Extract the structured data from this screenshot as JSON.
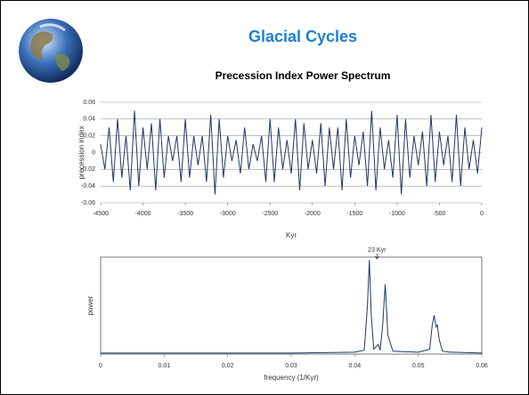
{
  "header": {
    "title": "Glacial Cycles",
    "subtitle": "Precession Index Power Spectrum"
  },
  "chart_data": [
    {
      "type": "line",
      "ylabel": "precession index",
      "xlabel": "Kyr",
      "color": "#1f3864",
      "grid": true,
      "xlim": [
        -4500,
        0
      ],
      "xticks": [
        -4500,
        -4000,
        -3500,
        -3000,
        -2500,
        -2000,
        -1500,
        -1000,
        -500,
        0
      ],
      "ylim": [
        -0.06,
        0.06
      ],
      "yticks": [
        0.06,
        0.04,
        0.02,
        0,
        -0.02,
        -0.04,
        -0.06
      ],
      "x": [
        -4500,
        -4450,
        -4400,
        -4350,
        -4300,
        -4250,
        -4200,
        -4150,
        -4100,
        -4050,
        -4000,
        -3950,
        -3900,
        -3850,
        -3800,
        -3750,
        -3700,
        -3650,
        -3600,
        -3550,
        -3500,
        -3450,
        -3400,
        -3350,
        -3300,
        -3250,
        -3200,
        -3150,
        -3100,
        -3050,
        -3000,
        -2950,
        -2900,
        -2850,
        -2800,
        -2750,
        -2700,
        -2650,
        -2600,
        -2550,
        -2500,
        -2450,
        -2400,
        -2350,
        -2300,
        -2250,
        -2200,
        -2150,
        -2100,
        -2050,
        -2000,
        -1950,
        -1900,
        -1850,
        -1800,
        -1750,
        -1700,
        -1650,
        -1600,
        -1550,
        -1500,
        -1450,
        -1400,
        -1350,
        -1300,
        -1250,
        -1200,
        -1150,
        -1100,
        -1050,
        -1000,
        -950,
        -900,
        -850,
        -800,
        -750,
        -700,
        -650,
        -600,
        -550,
        -500,
        -450,
        -400,
        -350,
        -300,
        -250,
        -200,
        -150,
        -100,
        -50,
        0
      ],
      "values": [
        0.01,
        -0.02,
        0.03,
        -0.035,
        0.04,
        -0.03,
        0.02,
        -0.045,
        0.05,
        -0.04,
        0.03,
        -0.02,
        0.035,
        -0.045,
        0.04,
        -0.03,
        0.02,
        -0.01,
        0.02,
        -0.035,
        0.04,
        -0.03,
        0.02,
        -0.015,
        0.02,
        -0.035,
        0.045,
        -0.05,
        0.04,
        -0.03,
        0.02,
        -0.01,
        0.015,
        -0.025,
        0.03,
        -0.02,
        0.01,
        -0.01,
        0.02,
        -0.035,
        0.04,
        -0.035,
        0.03,
        -0.02,
        0.015,
        -0.025,
        0.04,
        -0.045,
        0.035,
        -0.02,
        0.015,
        -0.025,
        0.035,
        -0.04,
        0.03,
        -0.02,
        0.03,
        -0.045,
        0.04,
        -0.03,
        0.02,
        -0.015,
        0.025,
        -0.04,
        0.05,
        -0.045,
        0.03,
        -0.02,
        0.015,
        -0.03,
        0.045,
        -0.05,
        0.04,
        -0.03,
        0.02,
        -0.015,
        0.025,
        -0.04,
        0.045,
        -0.035,
        0.025,
        -0.015,
        0.02,
        -0.035,
        0.045,
        -0.04,
        0.03,
        -0.02,
        0.015,
        -0.025,
        0.03
      ]
    },
    {
      "type": "line",
      "ylabel": "power",
      "xlabel": "frequency (1/Kyr)",
      "color": "#1f3864",
      "grid": false,
      "xlim": [
        0,
        0.06
      ],
      "xticks": [
        0,
        0.01,
        0.02,
        0.03,
        0.04,
        0.05,
        0.06
      ],
      "ylim": [
        0,
        1
      ],
      "annotation": {
        "text": "23 Kyr",
        "x": 0.0435
      },
      "x": [
        0,
        0.01,
        0.02,
        0.03,
        0.04,
        0.0415,
        0.042,
        0.0423,
        0.0426,
        0.043,
        0.0434,
        0.0437,
        0.044,
        0.0444,
        0.0448,
        0.0452,
        0.046,
        0.05,
        0.0518,
        0.0522,
        0.0525,
        0.0528,
        0.053,
        0.0533,
        0.0538,
        0.055,
        0.06
      ],
      "values": [
        0.01,
        0.01,
        0.01,
        0.01,
        0.02,
        0.04,
        0.5,
        0.97,
        0.4,
        0.05,
        0.08,
        0.1,
        0.04,
        0.3,
        0.72,
        0.2,
        0.03,
        0.02,
        0.05,
        0.3,
        0.4,
        0.28,
        0.3,
        0.15,
        0.03,
        0.02,
        0.01
      ]
    }
  ]
}
